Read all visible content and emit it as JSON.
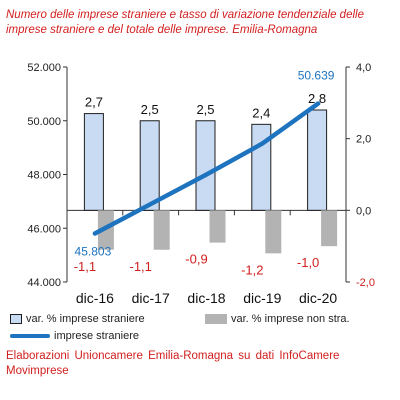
{
  "title": "Numero delle imprese straniere e tasso di variazione tendenziale delle imprese straniere e del totale delle imprese. Emilia-Romagna",
  "source": "Elaborazioni Unioncamere Emilia-Romagna su dati InfoCamere Movimprese",
  "colors": {
    "bar_stranieri": "#c9daf3",
    "bar_stranieri_border": "#1f1f1f",
    "bar_totale": "#b3b3b3",
    "line": "#1e73be",
    "red_text": "#d21e1e"
  },
  "chart_data": {
    "type": "bar+line",
    "categories": [
      "dic-16",
      "dic-17",
      "dic-18",
      "dic-19",
      "dic-20"
    ],
    "left_axis": {
      "ylim": [
        44000,
        52000
      ],
      "ticks": [
        44000,
        46000,
        48000,
        50000,
        52000
      ],
      "tick_labels": [
        "44.000",
        "46.000",
        "48.000",
        "50.000",
        "52.000"
      ]
    },
    "right_axis": {
      "ylim": [
        -2.0,
        4.0
      ],
      "ticks": [
        -2.0,
        0.0,
        2.0,
        4.0
      ],
      "tick_labels": [
        "-2,0",
        "0,0",
        "2,0",
        "4,0"
      ]
    },
    "series": [
      {
        "name": "var. % imprese straniere",
        "type": "bar",
        "axis": "right",
        "values": [
          2.7,
          2.5,
          2.5,
          2.4,
          2.8
        ],
        "labels": [
          "2,7",
          "2,5",
          "2,5",
          "2,4",
          "2,8"
        ]
      },
      {
        "name": "var. % imprese non stra.",
        "type": "bar",
        "axis": "right",
        "values": [
          -1.1,
          -1.1,
          -0.9,
          -1.2,
          -1.0
        ],
        "labels": [
          "-1,1",
          "-1,1",
          "-0,9",
          "-1,2",
          "-1,0"
        ]
      },
      {
        "name": "imprese straniere",
        "type": "line",
        "axis": "left",
        "values": [
          45803,
          46900,
          48000,
          49150,
          50639
        ],
        "labels": [
          "45.803",
          "",
          "",
          "",
          "50.639"
        ]
      }
    ],
    "legend_position": "bottom",
    "grid": false
  }
}
